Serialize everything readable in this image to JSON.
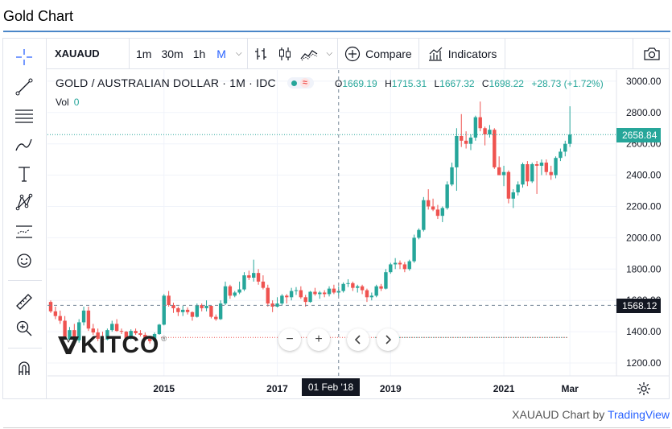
{
  "page": {
    "title": "Gold Chart"
  },
  "toolbar": {
    "symbol": "XAUAUD",
    "intervals": [
      "1m",
      "30m",
      "1h",
      "M"
    ],
    "active_interval": "M",
    "compare_label": "Compare",
    "indicators_label": "Indicators"
  },
  "legend": {
    "title": "GOLD / AUSTRALIAN DOLLAR · 1M · IDC",
    "open_label": "O",
    "open": "1669.19",
    "high_label": "H",
    "high": "1715.31",
    "low_label": "L",
    "low": "1667.32",
    "close_label": "C",
    "close": "1698.22",
    "change": "+28.73 (+1.72%)",
    "vol_label": "Vol",
    "vol_value": "0"
  },
  "price_tags": {
    "last": "2658.84",
    "crosshair": "1568.12"
  },
  "crosshair_date": "01 Feb '18",
  "watermark": {
    "brand": "KITCO",
    "reg": "®"
  },
  "footer": {
    "symbol_text": "XAUAUD Chart by",
    "brand": "TradingView"
  },
  "colors": {
    "up": "#26a69a",
    "down": "#ef5350",
    "accent": "#2962ff",
    "rule": "#4a86c8"
  },
  "chart_data": {
    "type": "candlestick",
    "title": "GOLD / AUSTRALIAN DOLLAR · 1M · IDC",
    "interval": "1M",
    "y_axis": {
      "min": 1200,
      "max": 3000,
      "ticks": [
        1200,
        1400,
        1600,
        1800,
        2000,
        2200,
        2400,
        2600,
        2800,
        3000
      ],
      "side": "right"
    },
    "x_axis": {
      "labels": [
        "2015",
        "2017",
        "2019",
        "2021",
        "Mar"
      ]
    },
    "last_price": 2658.84,
    "crosshair_price": 1568.12,
    "crosshair_date": "01 Feb '18",
    "grid": true,
    "series": [
      {
        "d": "2013-01",
        "o": 1590,
        "h": 1600,
        "l": 1520,
        "c": 1530
      },
      {
        "d": "2013-02",
        "o": 1530,
        "h": 1560,
        "l": 1480,
        "c": 1500
      },
      {
        "d": "2013-03",
        "o": 1500,
        "h": 1535,
        "l": 1450,
        "c": 1470
      },
      {
        "d": "2013-04",
        "o": 1470,
        "h": 1500,
        "l": 1300,
        "c": 1350
      },
      {
        "d": "2013-05",
        "o": 1350,
        "h": 1430,
        "l": 1300,
        "c": 1410
      },
      {
        "d": "2013-06",
        "o": 1410,
        "h": 1450,
        "l": 1310,
        "c": 1345
      },
      {
        "d": "2013-07",
        "o": 1345,
        "h": 1480,
        "l": 1330,
        "c": 1460
      },
      {
        "d": "2013-08",
        "o": 1460,
        "h": 1560,
        "l": 1440,
        "c": 1535
      },
      {
        "d": "2013-09",
        "o": 1535,
        "h": 1560,
        "l": 1405,
        "c": 1420
      },
      {
        "d": "2013-10",
        "o": 1420,
        "h": 1450,
        "l": 1380,
        "c": 1395
      },
      {
        "d": "2013-11",
        "o": 1395,
        "h": 1420,
        "l": 1340,
        "c": 1355
      },
      {
        "d": "2013-12",
        "o": 1355,
        "h": 1400,
        "l": 1330,
        "c": 1350
      },
      {
        "d": "2014-01",
        "o": 1350,
        "h": 1420,
        "l": 1345,
        "c": 1410
      },
      {
        "d": "2014-02",
        "o": 1410,
        "h": 1470,
        "l": 1400,
        "c": 1450
      },
      {
        "d": "2014-03",
        "o": 1450,
        "h": 1480,
        "l": 1400,
        "c": 1405
      },
      {
        "d": "2014-04",
        "o": 1405,
        "h": 1420,
        "l": 1385,
        "c": 1400
      },
      {
        "d": "2014-05",
        "o": 1400,
        "h": 1405,
        "l": 1345,
        "c": 1355
      },
      {
        "d": "2014-06",
        "o": 1355,
        "h": 1415,
        "l": 1350,
        "c": 1405
      },
      {
        "d": "2014-07",
        "o": 1405,
        "h": 1420,
        "l": 1380,
        "c": 1390
      },
      {
        "d": "2014-08",
        "o": 1390,
        "h": 1410,
        "l": 1370,
        "c": 1380
      },
      {
        "d": "2014-09",
        "o": 1380,
        "h": 1395,
        "l": 1340,
        "c": 1355
      },
      {
        "d": "2014-10",
        "o": 1355,
        "h": 1370,
        "l": 1325,
        "c": 1340
      },
      {
        "d": "2014-11",
        "o": 1340,
        "h": 1395,
        "l": 1320,
        "c": 1385
      },
      {
        "d": "2014-12",
        "o": 1385,
        "h": 1450,
        "l": 1380,
        "c": 1445
      },
      {
        "d": "2015-01",
        "o": 1445,
        "h": 1640,
        "l": 1440,
        "c": 1630
      },
      {
        "d": "2015-02",
        "o": 1630,
        "h": 1660,
        "l": 1560,
        "c": 1570
      },
      {
        "d": "2015-03",
        "o": 1570,
        "h": 1585,
        "l": 1520,
        "c": 1550
      },
      {
        "d": "2015-04",
        "o": 1550,
        "h": 1560,
        "l": 1500,
        "c": 1525
      },
      {
        "d": "2015-05",
        "o": 1525,
        "h": 1565,
        "l": 1500,
        "c": 1540
      },
      {
        "d": "2015-06",
        "o": 1540,
        "h": 1555,
        "l": 1510,
        "c": 1525
      },
      {
        "d": "2015-07",
        "o": 1525,
        "h": 1530,
        "l": 1470,
        "c": 1495
      },
      {
        "d": "2015-08",
        "o": 1495,
        "h": 1580,
        "l": 1490,
        "c": 1570
      },
      {
        "d": "2015-09",
        "o": 1570,
        "h": 1580,
        "l": 1530,
        "c": 1550
      },
      {
        "d": "2015-10",
        "o": 1550,
        "h": 1600,
        "l": 1530,
        "c": 1565
      },
      {
        "d": "2015-11",
        "o": 1565,
        "h": 1570,
        "l": 1485,
        "c": 1495
      },
      {
        "d": "2015-12",
        "o": 1495,
        "h": 1510,
        "l": 1470,
        "c": 1480
      },
      {
        "d": "2016-01",
        "o": 1480,
        "h": 1600,
        "l": 1475,
        "c": 1580
      },
      {
        "d": "2016-02",
        "o": 1580,
        "h": 1720,
        "l": 1570,
        "c": 1690
      },
      {
        "d": "2016-03",
        "o": 1690,
        "h": 1700,
        "l": 1610,
        "c": 1630
      },
      {
        "d": "2016-04",
        "o": 1630,
        "h": 1660,
        "l": 1620,
        "c": 1650
      },
      {
        "d": "2016-05",
        "o": 1650,
        "h": 1720,
        "l": 1640,
        "c": 1670
      },
      {
        "d": "2016-06",
        "o": 1670,
        "h": 1780,
        "l": 1660,
        "c": 1760
      },
      {
        "d": "2016-07",
        "o": 1760,
        "h": 1790,
        "l": 1730,
        "c": 1745
      },
      {
        "d": "2016-08",
        "o": 1745,
        "h": 1860,
        "l": 1720,
        "c": 1775
      },
      {
        "d": "2016-09",
        "o": 1775,
        "h": 1800,
        "l": 1700,
        "c": 1720
      },
      {
        "d": "2016-10",
        "o": 1720,
        "h": 1760,
        "l": 1670,
        "c": 1680
      },
      {
        "d": "2016-11",
        "o": 1680,
        "h": 1700,
        "l": 1560,
        "c": 1580
      },
      {
        "d": "2016-12",
        "o": 1580,
        "h": 1600,
        "l": 1525,
        "c": 1560
      },
      {
        "d": "2017-01",
        "o": 1560,
        "h": 1620,
        "l": 1555,
        "c": 1580
      },
      {
        "d": "2017-02",
        "o": 1580,
        "h": 1640,
        "l": 1570,
        "c": 1630
      },
      {
        "d": "2017-03",
        "o": 1630,
        "h": 1640,
        "l": 1580,
        "c": 1620
      },
      {
        "d": "2017-04",
        "o": 1620,
        "h": 1680,
        "l": 1600,
        "c": 1660
      },
      {
        "d": "2017-05",
        "o": 1660,
        "h": 1685,
        "l": 1635,
        "c": 1665
      },
      {
        "d": "2017-06",
        "o": 1665,
        "h": 1690,
        "l": 1610,
        "c": 1620
      },
      {
        "d": "2017-07",
        "o": 1620,
        "h": 1635,
        "l": 1560,
        "c": 1590
      },
      {
        "d": "2017-08",
        "o": 1590,
        "h": 1660,
        "l": 1585,
        "c": 1655
      },
      {
        "d": "2017-09",
        "o": 1655,
        "h": 1680,
        "l": 1630,
        "c": 1640
      },
      {
        "d": "2017-10",
        "o": 1640,
        "h": 1660,
        "l": 1610,
        "c": 1650
      },
      {
        "d": "2017-11",
        "o": 1650,
        "h": 1665,
        "l": 1620,
        "c": 1640
      },
      {
        "d": "2017-12",
        "o": 1640,
        "h": 1690,
        "l": 1625,
        "c": 1675
      },
      {
        "d": "2018-01",
        "o": 1675,
        "h": 1700,
        "l": 1640,
        "c": 1650
      },
      {
        "d": "2018-02",
        "o": 1650,
        "h": 1690,
        "l": 1630,
        "c": 1660
      },
      {
        "d": "2018-03",
        "o": 1660,
        "h": 1715,
        "l": 1650,
        "c": 1705
      },
      {
        "d": "2018-04",
        "o": 1705,
        "h": 1735,
        "l": 1685,
        "c": 1710
      },
      {
        "d": "2018-05",
        "o": 1710,
        "h": 1720,
        "l": 1660,
        "c": 1680
      },
      {
        "d": "2018-06",
        "o": 1680,
        "h": 1700,
        "l": 1650,
        "c": 1690
      },
      {
        "d": "2018-07",
        "o": 1690,
        "h": 1700,
        "l": 1640,
        "c": 1665
      },
      {
        "d": "2018-08",
        "o": 1665,
        "h": 1675,
        "l": 1590,
        "c": 1620
      },
      {
        "d": "2018-09",
        "o": 1620,
        "h": 1650,
        "l": 1600,
        "c": 1630
      },
      {
        "d": "2018-10",
        "o": 1630,
        "h": 1700,
        "l": 1620,
        "c": 1690
      },
      {
        "d": "2018-11",
        "o": 1690,
        "h": 1705,
        "l": 1660,
        "c": 1675
      },
      {
        "d": "2018-12",
        "o": 1675,
        "h": 1800,
        "l": 1670,
        "c": 1780
      },
      {
        "d": "2019-01",
        "o": 1780,
        "h": 1840,
        "l": 1770,
        "c": 1830
      },
      {
        "d": "2019-02",
        "o": 1830,
        "h": 1870,
        "l": 1800,
        "c": 1840
      },
      {
        "d": "2019-03",
        "o": 1840,
        "h": 1855,
        "l": 1800,
        "c": 1830
      },
      {
        "d": "2019-04",
        "o": 1830,
        "h": 1845,
        "l": 1780,
        "c": 1800
      },
      {
        "d": "2019-05",
        "o": 1800,
        "h": 1860,
        "l": 1790,
        "c": 1850
      },
      {
        "d": "2019-06",
        "o": 1850,
        "h": 2020,
        "l": 1840,
        "c": 2000
      },
      {
        "d": "2019-07",
        "o": 2000,
        "h": 2060,
        "l": 1990,
        "c": 2050
      },
      {
        "d": "2019-08",
        "o": 2050,
        "h": 2260,
        "l": 2040,
        "c": 2240
      },
      {
        "d": "2019-09",
        "o": 2240,
        "h": 2310,
        "l": 2180,
        "c": 2200
      },
      {
        "d": "2019-10",
        "o": 2200,
        "h": 2250,
        "l": 2170,
        "c": 2180
      },
      {
        "d": "2019-11",
        "o": 2180,
        "h": 2210,
        "l": 2120,
        "c": 2140
      },
      {
        "d": "2019-12",
        "o": 2140,
        "h": 2200,
        "l": 2100,
        "c": 2190
      },
      {
        "d": "2020-01",
        "o": 2190,
        "h": 2360,
        "l": 2180,
        "c": 2340
      },
      {
        "d": "2020-02",
        "o": 2340,
        "h": 2480,
        "l": 2330,
        "c": 2450
      },
      {
        "d": "2020-03",
        "o": 2450,
        "h": 2700,
        "l": 2300,
        "c": 2650
      },
      {
        "d": "2020-04",
        "o": 2650,
        "h": 2790,
        "l": 2580,
        "c": 2620
      },
      {
        "d": "2020-05",
        "o": 2620,
        "h": 2680,
        "l": 2570,
        "c": 2600
      },
      {
        "d": "2020-06",
        "o": 2600,
        "h": 2660,
        "l": 2560,
        "c": 2640
      },
      {
        "d": "2020-07",
        "o": 2640,
        "h": 2780,
        "l": 2620,
        "c": 2770
      },
      {
        "d": "2020-08",
        "o": 2770,
        "h": 2870,
        "l": 2680,
        "c": 2700
      },
      {
        "d": "2020-09",
        "o": 2700,
        "h": 2710,
        "l": 2590,
        "c": 2660
      },
      {
        "d": "2020-10",
        "o": 2660,
        "h": 2720,
        "l": 2640,
        "c": 2690
      },
      {
        "d": "2020-11",
        "o": 2690,
        "h": 2700,
        "l": 2440,
        "c": 2450
      },
      {
        "d": "2020-12",
        "o": 2450,
        "h": 2520,
        "l": 2400,
        "c": 2400
      },
      {
        "d": "2021-01",
        "o": 2400,
        "h": 2460,
        "l": 2330,
        "c": 2420
      },
      {
        "d": "2021-02",
        "o": 2420,
        "h": 2430,
        "l": 2220,
        "c": 2250
      },
      {
        "d": "2021-03",
        "o": 2250,
        "h": 2310,
        "l": 2190,
        "c": 2290
      },
      {
        "d": "2021-04",
        "o": 2290,
        "h": 2360,
        "l": 2270,
        "c": 2340
      },
      {
        "d": "2021-05",
        "o": 2340,
        "h": 2480,
        "l": 2320,
        "c": 2470
      },
      {
        "d": "2021-06",
        "o": 2470,
        "h": 2490,
        "l": 2330,
        "c": 2360
      },
      {
        "d": "2021-07",
        "o": 2360,
        "h": 2480,
        "l": 2350,
        "c": 2470
      },
      {
        "d": "2021-08",
        "o": 2470,
        "h": 2490,
        "l": 2280,
        "c": 2460
      },
      {
        "d": "2021-09",
        "o": 2460,
        "h": 2500,
        "l": 2400,
        "c": 2480
      },
      {
        "d": "2021-10",
        "o": 2480,
        "h": 2500,
        "l": 2400,
        "c": 2420
      },
      {
        "d": "2021-11",
        "o": 2420,
        "h": 2460,
        "l": 2370,
        "c": 2400
      },
      {
        "d": "2021-12",
        "o": 2400,
        "h": 2520,
        "l": 2380,
        "c": 2510
      },
      {
        "d": "2022-01",
        "o": 2510,
        "h": 2570,
        "l": 2490,
        "c": 2550
      },
      {
        "d": "2022-02",
        "o": 2550,
        "h": 2620,
        "l": 2520,
        "c": 2600
      },
      {
        "d": "2022-03",
        "o": 2600,
        "h": 2840,
        "l": 2580,
        "c": 2658.84
      }
    ]
  }
}
